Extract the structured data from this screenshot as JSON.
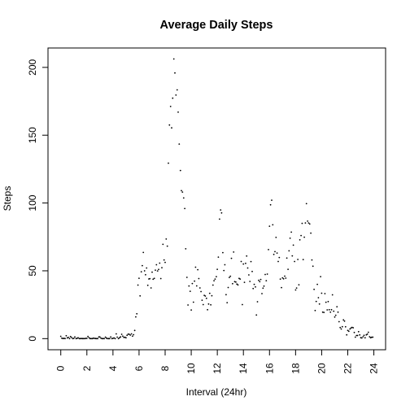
{
  "chart_data": {
    "type": "scatter",
    "title": "Average Daily Steps",
    "xlabel": "Interval (24hr)",
    "ylabel": "Steps",
    "xlim": [
      -0.98,
      24.9
    ],
    "ylim": [
      -8.2,
      214.3
    ],
    "x_ticks": [
      0,
      2,
      4,
      6,
      8,
      10,
      12,
      14,
      16,
      18,
      20,
      22,
      24
    ],
    "y_ticks": [
      0,
      50,
      100,
      150,
      200
    ],
    "grid": false,
    "marker_color": "#000000",
    "series": [
      {
        "x": [
          0.0,
          0.08,
          0.17,
          0.25,
          0.33,
          0.42,
          0.5,
          0.58,
          0.67,
          0.75,
          0.83,
          0.92,
          1.0,
          1.08,
          1.17,
          1.25,
          1.33,
          1.42,
          1.5,
          1.58,
          1.67,
          1.75,
          1.83,
          1.92,
          2.0,
          2.08,
          2.17,
          2.25,
          2.33,
          2.42,
          2.5,
          2.58,
          2.67,
          2.75,
          2.83,
          2.92,
          3.0,
          3.08,
          3.17,
          3.25,
          3.33,
          3.42,
          3.5,
          3.58,
          3.67,
          3.75,
          3.83,
          3.92,
          4.0,
          4.08,
          4.17,
          4.25,
          4.33,
          4.42,
          4.5,
          4.58,
          4.67,
          4.75,
          4.83,
          4.92,
          5.0,
          5.08,
          5.17,
          5.25,
          5.33,
          5.42,
          5.5,
          5.58,
          5.67,
          5.75,
          5.83,
          5.92,
          6.0,
          6.08,
          6.17,
          6.25,
          6.33,
          6.42,
          6.5,
          6.58,
          6.67,
          6.75,
          6.83,
          6.92,
          7.0,
          7.08,
          7.17,
          7.25,
          7.33,
          7.42,
          7.5,
          7.58,
          7.67,
          7.75,
          7.83,
          7.92,
          8.0,
          8.08,
          8.17,
          8.25,
          8.33,
          8.42,
          8.5,
          8.58,
          8.67,
          8.75,
          8.83,
          8.92,
          9.0,
          9.08,
          9.17,
          9.25,
          9.33,
          9.42,
          9.5,
          9.58,
          9.67,
          9.75,
          9.83,
          9.92,
          10.0,
          10.08,
          10.17,
          10.25,
          10.33,
          10.42,
          10.5,
          10.58,
          10.67,
          10.75,
          10.83,
          10.92,
          11.0,
          11.08,
          11.17,
          11.25,
          11.33,
          11.42,
          11.5,
          11.58,
          11.67,
          11.75,
          11.83,
          11.92,
          12.0,
          12.08,
          12.17,
          12.25,
          12.33,
          12.42,
          12.5,
          12.58,
          12.67,
          12.75,
          12.83,
          12.92,
          13.0,
          13.08,
          13.17,
          13.25,
          13.33,
          13.42,
          13.5,
          13.58,
          13.67,
          13.75,
          13.83,
          13.92,
          14.0,
          14.08,
          14.17,
          14.25,
          14.33,
          14.42,
          14.5,
          14.58,
          14.67,
          14.75,
          14.83,
          14.92,
          15.0,
          15.08,
          15.17,
          15.25,
          15.33,
          15.42,
          15.5,
          15.58,
          15.67,
          15.75,
          15.83,
          15.92,
          16.0,
          16.08,
          16.17,
          16.25,
          16.33,
          16.42,
          16.5,
          16.58,
          16.67,
          16.75,
          16.83,
          16.92,
          17.0,
          17.08,
          17.17,
          17.25,
          17.33,
          17.42,
          17.5,
          17.58,
          17.67,
          17.75,
          17.83,
          17.92,
          18.0,
          18.08,
          18.17,
          18.25,
          18.33,
          18.42,
          18.5,
          18.58,
          18.67,
          18.75,
          18.83,
          18.92,
          19.0,
          19.08,
          19.17,
          19.25,
          19.33,
          19.42,
          19.5,
          19.58,
          19.67,
          19.75,
          19.83,
          19.92,
          20.0,
          20.08,
          20.17,
          20.25,
          20.33,
          20.42,
          20.5,
          20.58,
          20.67,
          20.75,
          20.83,
          20.92,
          21.0,
          21.08,
          21.17,
          21.25,
          21.33,
          21.42,
          21.5,
          21.58,
          21.67,
          21.75,
          21.83,
          21.92,
          22.0,
          22.08,
          22.17,
          22.25,
          22.33,
          22.42,
          22.5,
          22.58,
          22.67,
          22.75,
          22.83,
          22.92,
          23.0,
          23.08,
          23.17,
          23.25,
          23.33,
          23.42,
          23.5,
          23.58,
          23.67,
          23.75,
          23.83,
          23.92
        ],
        "y": [
          1.7,
          0.3,
          0.1,
          0.2,
          0.1,
          2.1,
          0.5,
          0.9,
          0.0,
          1.5,
          0.8,
          0.0,
          0.2,
          1.2,
          0.0,
          0.2,
          0.6,
          0.0,
          0.0,
          0.1,
          0.0,
          0.0,
          0.0,
          0.2,
          0.2,
          1.6,
          0.6,
          0.0,
          0.0,
          0.0,
          0.3,
          0.2,
          0.1,
          0.0,
          0.0,
          1.2,
          1.2,
          0.3,
          0.0,
          0.0,
          0.0,
          1.1,
          0.4,
          0.0,
          0.0,
          0.0,
          1.2,
          0.0,
          0.2,
          0.5,
          0.0,
          3.5,
          1.1,
          0.0,
          0.6,
          1.3,
          3.2,
          1.8,
          0.9,
          1.0,
          0.6,
          2.5,
          3.3,
          3.2,
          2.6,
          3.5,
          1.8,
          2.9,
          6.0,
          16.0,
          18.3,
          39.5,
          44.5,
          31.5,
          49.3,
          53.8,
          63.5,
          50.0,
          47.1,
          52.1,
          39.3,
          44.0,
          44.2,
          37.4,
          49.0,
          43.8,
          44.4,
          50.5,
          54.5,
          49.9,
          51.0,
          55.7,
          44.3,
          52.3,
          69.5,
          58.0,
          56.2,
          73.4,
          68.2,
          129.4,
          157.5,
          171.2,
          155.4,
          177.3,
          206.2,
          195.9,
          179.6,
          183.4,
          167.0,
          143.5,
          124.0,
          109.1,
          108.1,
          103.7,
          95.9,
          66.2,
          45.2,
          24.8,
          38.8,
          34.9,
          21.1,
          40.6,
          26.9,
          42.4,
          52.7,
          38.9,
          50.8,
          44.3,
          37.4,
          34.7,
          28.3,
          25.1,
          31.9,
          31.4,
          29.7,
          21.3,
          25.5,
          33.4,
          24.9,
          31.6,
          39.5,
          42.7,
          43.9,
          45.7,
          51.1,
          60.1,
          88.1,
          94.9,
          92.7,
          63.4,
          50.2,
          54.5,
          32.4,
          26.5,
          37.7,
          45.1,
          46.0,
          59.2,
          40.5,
          63.8,
          42.0,
          41.7,
          40.2,
          39.6,
          44.4,
          43.9,
          56.9,
          25.1,
          55.0,
          41.5,
          55.5,
          60.9,
          52.1,
          47.0,
          42.2,
          56.8,
          49.5,
          36.9,
          40.0,
          38.1,
          17.4,
          27.2,
          43.0,
          42.0,
          43.6,
          33.2,
          37.2,
          38.7,
          47.3,
          42.7,
          47.6,
          65.6,
          82.9,
          98.7,
          102.1,
          83.9,
          62.1,
          64.1,
          74.6,
          63.1,
          56.9,
          59.8,
          43.9,
          37.6,
          44.8,
          44.1,
          46.1,
          44.6,
          59.4,
          51.1,
          64.7,
          74.0,
          78.5,
          61.0,
          68.9,
          56.9,
          35.9,
          37.3,
          58.4,
          39.7,
          72.8,
          76.0,
          85.0,
          58.3,
          74.8,
          85.3,
          99.5,
          86.6,
          85.3,
          84.5,
          77.8,
          58.0,
          53.4,
          36.3,
          20.7,
          27.4,
          40.0,
          30.2,
          25.5,
          45.7,
          33.5,
          19.5,
          19.3,
          33.2,
          26.8,
          21.2,
          27.3,
          21.3,
          19.5,
          21.3,
          32.3,
          20.2,
          15.9,
          17.2,
          23.5,
          19.5,
          12.5,
          8.2,
          7.1,
          8.8,
          13.8,
          12.9,
          8.7,
          2.8,
          6.0,
          5.4,
          7.1,
          7.8,
          8.3,
          8.0,
          4.5,
          1.1,
          2.3,
          2.3,
          5.1,
          2.7,
          0.7,
          0.5,
          1.4,
          2.4,
          0.6,
          2.8,
          3.3,
          4.7,
          1.4,
          0.7,
          1.0,
          1.1
        ]
      }
    ]
  }
}
